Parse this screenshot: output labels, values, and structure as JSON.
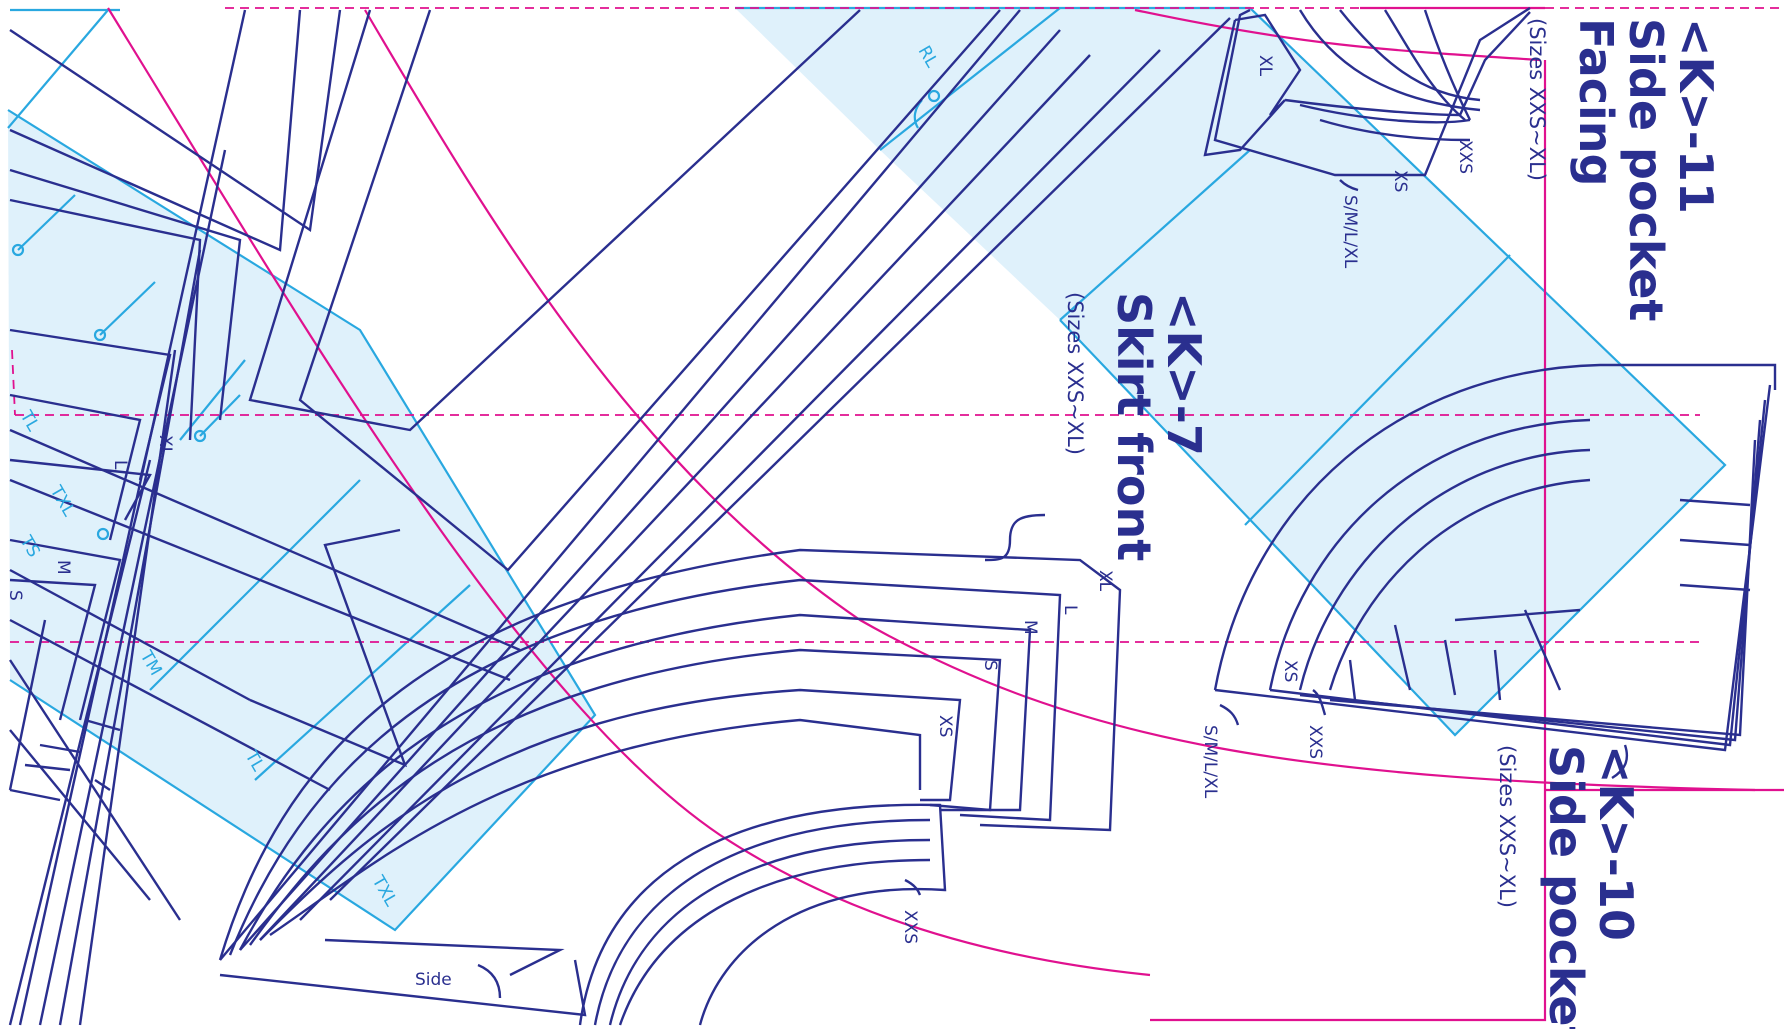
{
  "colors": {
    "outline": "#2a2f8f",
    "grainline": "#29a8e0",
    "panel_fill": "#dff1fb",
    "fold_guides": "#e0118f"
  },
  "pieces": {
    "side_pocket_facing": {
      "code": "<K>-11",
      "name_line1": "Side pocket",
      "name_line2": "Facing",
      "sizes": "(Sizes XXS~XL)"
    },
    "skirt_front": {
      "code": "<K>-7",
      "name": "Skirt front",
      "sizes": "(Sizes XXS~XL)"
    },
    "side_pocket": {
      "code": "<K>-10",
      "name": "Side pocket",
      "sizes": "(Sizes XXS~XL)"
    }
  },
  "labels": {
    "side": "Side",
    "rl": "RL",
    "xl": "XL",
    "l": "L",
    "m": "M",
    "s": "S",
    "xs": "XS",
    "xxs": "XXS",
    "sml_xl": "S/M/L/XL",
    "tl": "TL",
    "txl": "TXL",
    "tm": "TM",
    "ts": "TS"
  }
}
